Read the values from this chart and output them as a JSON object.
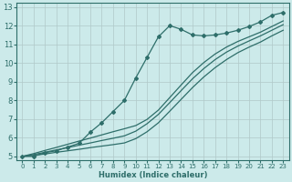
{
  "xlabel": "Humidex (Indice chaleur)",
  "ylabel": "",
  "bg_color": "#cceaea",
  "grid_color": "#b0c8c8",
  "line_color": "#2e6e6a",
  "xlim": [
    -0.5,
    23.5
  ],
  "ylim": [
    4.8,
    13.2
  ],
  "xticks": [
    0,
    1,
    2,
    3,
    4,
    5,
    6,
    7,
    8,
    9,
    10,
    11,
    12,
    13,
    14,
    15,
    16,
    17,
    18,
    19,
    20,
    21,
    22,
    23
  ],
  "yticks": [
    5,
    6,
    7,
    8,
    9,
    10,
    11,
    12,
    13
  ],
  "main_x": [
    0,
    1,
    2,
    3,
    4,
    5,
    6,
    7,
    8,
    9,
    10,
    11,
    12,
    13,
    14,
    15,
    16,
    17,
    18,
    19,
    20,
    21,
    22,
    23
  ],
  "main_y": [
    5.0,
    5.0,
    5.2,
    5.3,
    5.5,
    5.7,
    6.3,
    6.8,
    7.4,
    8.0,
    9.2,
    10.3,
    11.4,
    12.0,
    11.8,
    11.5,
    11.45,
    11.5,
    11.6,
    11.75,
    11.95,
    12.2,
    12.55,
    12.7
  ],
  "line2_x": [
    0,
    1,
    2,
    3,
    4,
    5,
    6,
    7,
    8,
    9,
    10,
    11,
    12,
    13,
    14,
    15,
    16,
    17,
    18,
    19,
    20,
    21,
    22,
    23
  ],
  "line2_y": [
    5.0,
    5.15,
    5.32,
    5.48,
    5.65,
    5.82,
    5.98,
    6.15,
    6.32,
    6.48,
    6.65,
    6.98,
    7.48,
    8.15,
    8.82,
    9.48,
    10.02,
    10.48,
    10.85,
    11.15,
    11.4,
    11.65,
    11.95,
    12.25
  ],
  "line3_x": [
    0,
    1,
    2,
    3,
    4,
    5,
    6,
    7,
    8,
    9,
    10,
    11,
    12,
    13,
    14,
    15,
    16,
    17,
    18,
    19,
    20,
    21,
    22,
    23
  ],
  "line3_y": [
    5.0,
    5.1,
    5.22,
    5.35,
    5.47,
    5.6,
    5.72,
    5.85,
    5.97,
    6.1,
    6.35,
    6.75,
    7.25,
    7.88,
    8.52,
    9.15,
    9.7,
    10.18,
    10.58,
    10.9,
    11.18,
    11.45,
    11.75,
    12.05
  ],
  "line4_x": [
    0,
    1,
    2,
    3,
    4,
    5,
    6,
    7,
    8,
    9,
    10,
    11,
    12,
    13,
    14,
    15,
    16,
    17,
    18,
    19,
    20,
    21,
    22,
    23
  ],
  "line4_y": [
    5.0,
    5.05,
    5.13,
    5.22,
    5.3,
    5.38,
    5.47,
    5.55,
    5.63,
    5.72,
    5.95,
    6.32,
    6.8,
    7.42,
    8.05,
    8.68,
    9.25,
    9.75,
    10.18,
    10.55,
    10.85,
    11.12,
    11.45,
    11.75
  ]
}
